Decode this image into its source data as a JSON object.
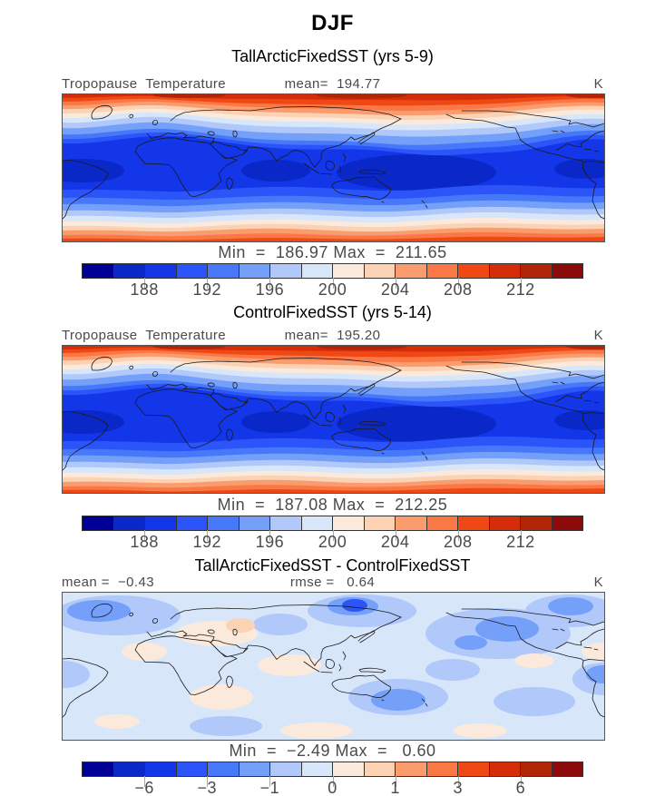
{
  "page": {
    "season_title": "DJF"
  },
  "palette": [
    "#000096",
    "#0a28c8",
    "#1236e8",
    "#2b55f8",
    "#4878fa",
    "#74a0fa",
    "#b0c8fa",
    "#d8e6fa",
    "#fbeadc",
    "#fbd2b4",
    "#fb9c6e",
    "#fa7846",
    "#f04814",
    "#d52c0a",
    "#b02408",
    "#8c0a0a"
  ],
  "panels": [
    {
      "title": "TallArcticFixedSST (yrs 5-9)",
      "field_label": "Tropopause  Temperature",
      "mean_label": "mean=  194.77",
      "unit": "K",
      "minmax_label": "Min  =  186.97 Max  =  211.65",
      "ticks": [
        "188",
        "192",
        "196",
        "200",
        "204",
        "208",
        "212"
      ]
    },
    {
      "title": "ControlFixedSST (yrs 5-14)",
      "field_label": "Tropopause  Temperature",
      "mean_label": "mean=  195.20",
      "unit": "K",
      "minmax_label": "Min  =  187.08 Max  =  212.25",
      "ticks": [
        "188",
        "192",
        "196",
        "200",
        "204",
        "208",
        "212"
      ]
    },
    {
      "title": "TallArcticFixedSST - ControlFixedSST",
      "mean_label": "mean =  −0.43",
      "rmse_label": "rmse =   0.64",
      "unit": "K",
      "minmax_label": "Min  =  −2.49 Max  =   0.60",
      "ticks": [
        "−6",
        "−3",
        "−1",
        "0",
        "1",
        "3",
        "6"
      ]
    }
  ],
  "chart_data": [
    {
      "type": "heatmap",
      "panel": 1,
      "season": "DJF",
      "title": "TallArcticFixedSST (yrs 5-9)",
      "variable": "Tropopause Temperature",
      "units": "K",
      "stats": {
        "mean": 194.77,
        "min": 186.97,
        "max": 211.65
      },
      "colorbar": {
        "orientation": "horizontal",
        "n_segments": 16,
        "segment_step": 2,
        "range": [
          184,
          216
        ],
        "tick_values": [
          188,
          192,
          196,
          200,
          204,
          208,
          212
        ]
      },
      "field_pattern": "zonal bands: warm (orange/red, ~205-214 K) across NH high latitudes at top, cold (dark blue, ~186-190 K) tropical belt with minimum over equatorial west Pacific / Indonesia, warming again (peach/orange) toward SH high latitudes at bottom; coastlines overlaid, global map with left edge near 65W"
    },
    {
      "type": "heatmap",
      "panel": 2,
      "season": "DJF",
      "title": "ControlFixedSST (yrs 5-14)",
      "variable": "Tropopause Temperature",
      "units": "K",
      "stats": {
        "mean": 195.2,
        "min": 187.08,
        "max": 212.25
      },
      "colorbar": {
        "orientation": "horizontal",
        "n_segments": 16,
        "segment_step": 2,
        "range": [
          184,
          216
        ],
        "tick_values": [
          188,
          192,
          196,
          200,
          204,
          208,
          212
        ]
      },
      "field_pattern": "same zonal structure as panel 1: warm NH winter pole, coldest tropical tropopause over west Pacific, warm SH summer high latitudes"
    },
    {
      "type": "heatmap",
      "panel": 3,
      "season": "DJF",
      "title": "TallArcticFixedSST - ControlFixedSST",
      "variable": "Tropopause Temperature difference",
      "units": "K",
      "stats": {
        "mean": -0.43,
        "rmse": 0.64,
        "min": -2.49,
        "max": 0.6
      },
      "colorbar": {
        "orientation": "horizontal",
        "n_segments": 16,
        "tick_values": [
          -6,
          -3,
          -1,
          0,
          1,
          3,
          6
        ]
      },
      "field_pattern": "mostly weak negative differences (pale/light blue) everywhere, stronger negative blobs (medium blue) near East Asia, North Pacific, North Atlantic and south of Australia, scattered small positive patches (pale peach) over Africa, Arabia, Indian Ocean and tropics"
    }
  ]
}
